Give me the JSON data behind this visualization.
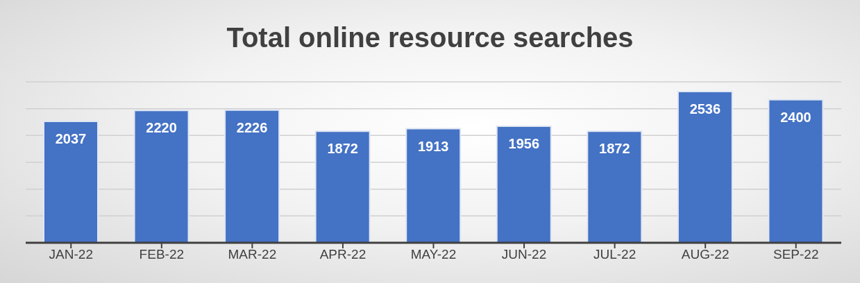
{
  "chart_data": {
    "type": "bar",
    "title": "Total online resource searches",
    "categories": [
      "JAN-22",
      "FEB-22",
      "MAR-22",
      "APR-22",
      "MAY-22",
      "JUN-22",
      "JUL-22",
      "AUG-22",
      "SEP-22"
    ],
    "values": [
      2037,
      2220,
      2226,
      1872,
      1913,
      1956,
      1872,
      2536,
      2400
    ],
    "color": "#4472c4",
    "data_labels": true,
    "tick_labels": "x",
    "grid": "y"
  }
}
